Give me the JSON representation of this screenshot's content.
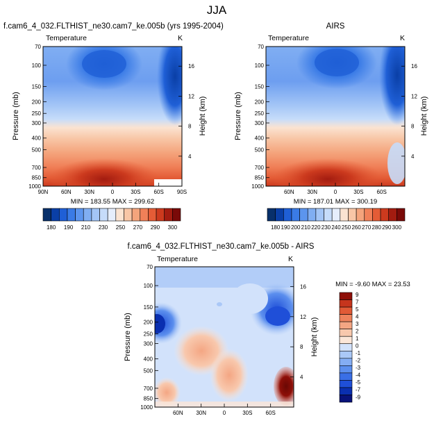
{
  "page": {
    "title": "JJA"
  },
  "palettes": {
    "abs": [
      "#08306b",
      "#0a3fa6",
      "#1f5fd6",
      "#3a7be6",
      "#5c95ee",
      "#80aef2",
      "#a3c5f6",
      "#c6dcfa",
      "#e6eefc",
      "#fbe3d1",
      "#f8c6a6",
      "#f4a47c",
      "#f08058",
      "#e45c36",
      "#cc3a1e",
      "#a31c10",
      "#7a0a08"
    ],
    "diff": [
      "#08127a",
      "#0a2fb0",
      "#1f4fd8",
      "#3a6fe6",
      "#5c8fee",
      "#84adf3",
      "#aac8f7",
      "#d2e2fb",
      "#fbe6d8",
      "#f8c8ad",
      "#f4a683",
      "#ee825c",
      "#e15a36",
      "#c6351d",
      "#8e0f08"
    ]
  },
  "panels": [
    {
      "id": "model",
      "title": "f.cam6_4_032.FLTHIST_ne30.cam7_ke.005b (yrs 1995-2004)",
      "variable": "Temperature",
      "units": "K",
      "minmax": "MIN = 183.55   MAX = 299.62",
      "y_left_label": "Pressure (mb)",
      "y_right_label": "Height (km)"
    },
    {
      "id": "obs",
      "title": "AIRS",
      "variable": "Temperature",
      "units": "K",
      "minmax": "MIN = 187.01   MAX = 300.19",
      "y_left_label": "Pressure (mb)",
      "y_right_label": "Height (km)"
    },
    {
      "id": "diff",
      "title": "f.cam6_4_032.FLTHIST_ne30.cam7_ke.005b - AIRS",
      "variable": "Temperature",
      "units": "K",
      "minmax": "MIN = -9.60   MAX = 23.53",
      "y_left_label": "Pressure (mb)",
      "y_right_label": "Height (km)"
    }
  ],
  "chart_data": [
    {
      "type": "heatmap",
      "title": "f.cam6_4_032.FLTHIST_ne30.cam7_ke.005b (yrs 1995-2004)",
      "x_ticks": [
        "90N",
        "60N",
        "30N",
        "0",
        "30S",
        "60S",
        "90S"
      ],
      "x_range": [
        90,
        -90
      ],
      "y_ticks": [
        70,
        100,
        150,
        200,
        250,
        300,
        400,
        500,
        700,
        850,
        1000
      ],
      "y_range_mb": [
        70,
        1000
      ],
      "y_scale": "log",
      "y_right_ticks_km": [
        16,
        12,
        8,
        4
      ],
      "colorbar_labels": [
        "180",
        "190",
        "210",
        "230",
        "250",
        "270",
        "290",
        "300"
      ],
      "min": 183.55,
      "max": 299.62
    },
    {
      "type": "heatmap",
      "title": "AIRS",
      "x_ticks": [
        "60N",
        "30N",
        "0",
        "30S",
        "60S"
      ],
      "x_range": [
        90,
        -90
      ],
      "y_ticks": [
        70,
        100,
        150,
        200,
        250,
        300,
        400,
        500,
        700,
        850,
        1000
      ],
      "y_range_mb": [
        70,
        1000
      ],
      "y_scale": "log",
      "y_right_ticks_km": [
        16,
        12,
        8,
        4
      ],
      "colorbar_labels": [
        "180",
        "190",
        "200",
        "210",
        "220",
        "230",
        "240",
        "250",
        "260",
        "270",
        "280",
        "290",
        "300"
      ],
      "min": 187.01,
      "max": 300.19
    },
    {
      "type": "heatmap",
      "title": "f.cam6_4_032.FLTHIST_ne30.cam7_ke.005b - AIRS",
      "x_ticks": [
        "60N",
        "30N",
        "0",
        "30S",
        "60S"
      ],
      "x_range": [
        90,
        -90
      ],
      "y_ticks": [
        70,
        100,
        150,
        200,
        250,
        300,
        400,
        500,
        700,
        850,
        1000
      ],
      "y_range_mb": [
        70,
        1000
      ],
      "y_scale": "log",
      "y_right_ticks_km": [
        16,
        12,
        8,
        4
      ],
      "colorbar_labels": [
        "9",
        "7",
        "5",
        "4",
        "3",
        "2",
        "1",
        "0",
        "-1",
        "-2",
        "-3",
        "-4",
        "-5",
        "-7",
        "-9"
      ],
      "min": -9.6,
      "max": 23.53
    }
  ]
}
